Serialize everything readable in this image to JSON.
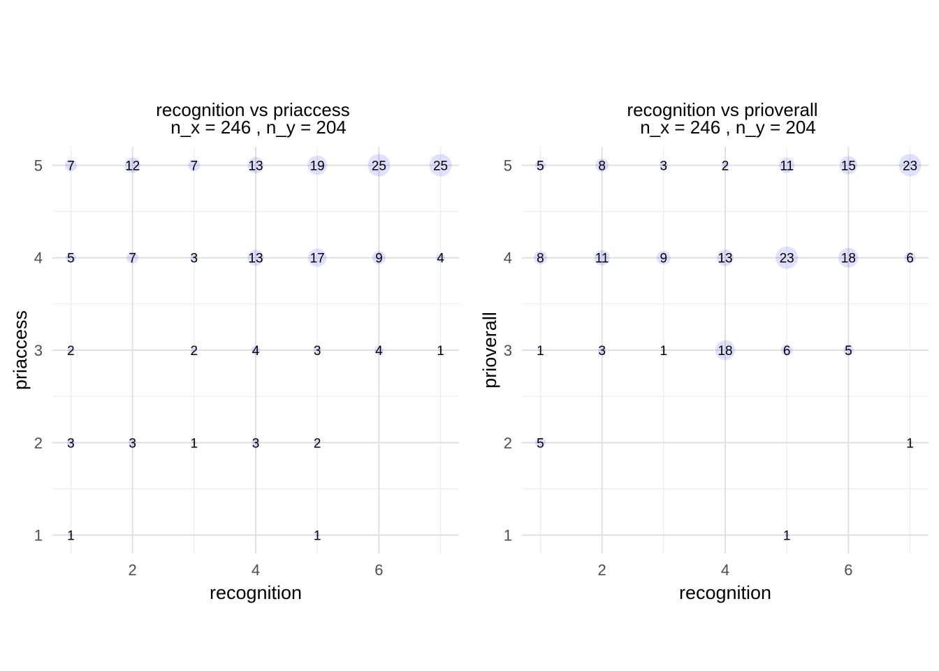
{
  "chart_data": [
    {
      "type": "scatter",
      "title": "recognition vs priaccess",
      "subtitle": "n_x = 246 , n_y = 204",
      "xlabel": "recognition",
      "ylabel": "priaccess",
      "xlim": [
        0.7,
        7.3
      ],
      "ylim": [
        0.8,
        5.2
      ],
      "xticks": [
        2,
        4,
        6
      ],
      "yticks": [
        1,
        2,
        3,
        4,
        5
      ],
      "grid": true,
      "bubble_color": "#0000ff",
      "bubble_opacity": 0.12,
      "label_color": "#000000",
      "points": [
        {
          "x": 1,
          "y": 5,
          "n": 7
        },
        {
          "x": 2,
          "y": 5,
          "n": 12
        },
        {
          "x": 3,
          "y": 5,
          "n": 7
        },
        {
          "x": 4,
          "y": 5,
          "n": 13
        },
        {
          "x": 5,
          "y": 5,
          "n": 19
        },
        {
          "x": 6,
          "y": 5,
          "n": 25
        },
        {
          "x": 7,
          "y": 5,
          "n": 25
        },
        {
          "x": 1,
          "y": 4,
          "n": 5
        },
        {
          "x": 2,
          "y": 4,
          "n": 7
        },
        {
          "x": 3,
          "y": 4,
          "n": 3
        },
        {
          "x": 4,
          "y": 4,
          "n": 13
        },
        {
          "x": 5,
          "y": 4,
          "n": 17
        },
        {
          "x": 6,
          "y": 4,
          "n": 9
        },
        {
          "x": 7,
          "y": 4,
          "n": 4
        },
        {
          "x": 1,
          "y": 3,
          "n": 2
        },
        {
          "x": 3,
          "y": 3,
          "n": 2
        },
        {
          "x": 4,
          "y": 3,
          "n": 4
        },
        {
          "x": 5,
          "y": 3,
          "n": 3
        },
        {
          "x": 6,
          "y": 3,
          "n": 4
        },
        {
          "x": 7,
          "y": 3,
          "n": 1
        },
        {
          "x": 1,
          "y": 2,
          "n": 3
        },
        {
          "x": 2,
          "y": 2,
          "n": 3
        },
        {
          "x": 3,
          "y": 2,
          "n": 1
        },
        {
          "x": 4,
          "y": 2,
          "n": 3
        },
        {
          "x": 5,
          "y": 2,
          "n": 2
        },
        {
          "x": 1,
          "y": 1,
          "n": 1
        },
        {
          "x": 5,
          "y": 1,
          "n": 1
        }
      ]
    },
    {
      "type": "scatter",
      "title": "recognition vs prioverall",
      "subtitle": "n_x = 246 , n_y = 204",
      "xlabel": "recognition",
      "ylabel": "prioverall",
      "xlim": [
        0.7,
        7.3
      ],
      "ylim": [
        0.8,
        5.2
      ],
      "xticks": [
        2,
        4,
        6
      ],
      "yticks": [
        1,
        2,
        3,
        4,
        5
      ],
      "grid": true,
      "bubble_color": "#0000ff",
      "bubble_opacity": 0.12,
      "label_color": "#000000",
      "points": [
        {
          "x": 1,
          "y": 5,
          "n": 5
        },
        {
          "x": 2,
          "y": 5,
          "n": 8
        },
        {
          "x": 3,
          "y": 5,
          "n": 3
        },
        {
          "x": 4,
          "y": 5,
          "n": 2
        },
        {
          "x": 5,
          "y": 5,
          "n": 11
        },
        {
          "x": 6,
          "y": 5,
          "n": 15
        },
        {
          "x": 7,
          "y": 5,
          "n": 23
        },
        {
          "x": 1,
          "y": 4,
          "n": 8
        },
        {
          "x": 2,
          "y": 4,
          "n": 11
        },
        {
          "x": 3,
          "y": 4,
          "n": 9
        },
        {
          "x": 4,
          "y": 4,
          "n": 13
        },
        {
          "x": 5,
          "y": 4,
          "n": 23
        },
        {
          "x": 6,
          "y": 4,
          "n": 18
        },
        {
          "x": 7,
          "y": 4,
          "n": 6
        },
        {
          "x": 1,
          "y": 3,
          "n": 1
        },
        {
          "x": 2,
          "y": 3,
          "n": 3
        },
        {
          "x": 3,
          "y": 3,
          "n": 1
        },
        {
          "x": 4,
          "y": 3,
          "n": 18
        },
        {
          "x": 5,
          "y": 3,
          "n": 6
        },
        {
          "x": 6,
          "y": 3,
          "n": 5
        },
        {
          "x": 1,
          "y": 2,
          "n": 5
        },
        {
          "x": 7,
          "y": 2,
          "n": 1
        },
        {
          "x": 5,
          "y": 1,
          "n": 1
        }
      ]
    }
  ]
}
